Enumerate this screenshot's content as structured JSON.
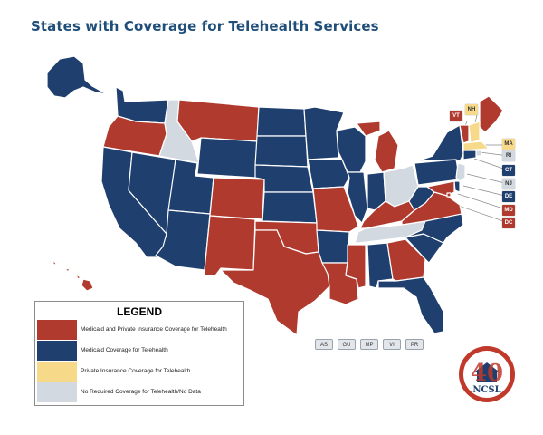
{
  "title": "States with Coverage for Telehealth Services",
  "colors": {
    "both": "#b03a2e",
    "medicaid": "#1f3f6e",
    "private": "#f7d98a",
    "none": "#d3d9e0"
  },
  "legend": {
    "title": "LEGEND",
    "items": [
      {
        "key": "both",
        "label": "Medicaid and Private Insurance Coverage for Telehealth"
      },
      {
        "key": "medicaid",
        "label": "Medicaid  Coverage for Telehealth"
      },
      {
        "key": "private",
        "label": "Private Insurance Coverage for Telehealth"
      },
      {
        "key": "none",
        "label": "No Required Coverage for Telehealth/No Data"
      }
    ]
  },
  "state_coverage": {
    "AK": "medicaid",
    "HI": "both",
    "WA": "medicaid",
    "OR": "both",
    "CA": "medicaid",
    "ID": "none",
    "NV": "medicaid",
    "UT": "medicaid",
    "AZ": "medicaid",
    "MT": "both",
    "WY": "medicaid",
    "CO": "both",
    "NM": "both",
    "ND": "medicaid",
    "SD": "medicaid",
    "NE": "medicaid",
    "KS": "medicaid",
    "OK": "both",
    "TX": "both",
    "MN": "medicaid",
    "IA": "medicaid",
    "MO": "both",
    "AR": "medicaid",
    "LA": "both",
    "WI": "medicaid",
    "IL": "medicaid",
    "MI": "both",
    "IN": "medicaid",
    "OH": "none",
    "KY": "both",
    "TN": "none",
    "MS": "both",
    "AL": "medicaid",
    "GA": "both",
    "FL": "medicaid",
    "SC": "medicaid",
    "NC": "medicaid",
    "VA": "both",
    "WV": "medicaid",
    "PA": "medicaid",
    "NY": "medicaid",
    "ME": "both",
    "VT": "both",
    "NH": "private",
    "MA": "private",
    "RI": "none",
    "CT": "medicaid",
    "NJ": "none",
    "DE": "medicaid",
    "MD": "both",
    "DC": "both"
  },
  "tags": [
    {
      "label": "VT",
      "key": "both"
    },
    {
      "label": "NH",
      "key": "private"
    },
    {
      "label": "MA",
      "key": "private"
    },
    {
      "label": "RI",
      "key": "none"
    },
    {
      "label": "CT",
      "key": "medicaid"
    },
    {
      "label": "NJ",
      "key": "none"
    },
    {
      "label": "DE",
      "key": "medicaid"
    },
    {
      "label": "MD",
      "key": "both"
    },
    {
      "label": "DC",
      "key": "both"
    }
  ],
  "territories": [
    "AS",
    "GU",
    "MP",
    "VI",
    "PR"
  ],
  "logo": {
    "number": "40",
    "text": "NCSL"
  }
}
